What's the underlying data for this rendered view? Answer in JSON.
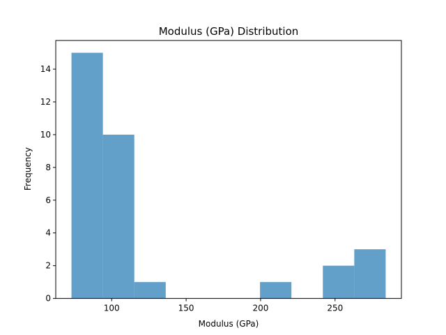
{
  "chart_data": {
    "type": "bar",
    "title": "Modulus (GPa) Distribution",
    "xlabel": "Modulus (GPa)",
    "ylabel": "Frequency",
    "bins": [
      {
        "x0": 73,
        "x1": 94.1,
        "count": 15
      },
      {
        "x0": 94.1,
        "x1": 115.2,
        "count": 10
      },
      {
        "x0": 115.2,
        "x1": 136.3,
        "count": 1
      },
      {
        "x0": 136.3,
        "x1": 157.4,
        "count": 0
      },
      {
        "x0": 157.4,
        "x1": 178.5,
        "count": 0
      },
      {
        "x0": 178.5,
        "x1": 199.6,
        "count": 0
      },
      {
        "x0": 199.6,
        "x1": 220.7,
        "count": 1
      },
      {
        "x0": 220.7,
        "x1": 241.8,
        "count": 0
      },
      {
        "x0": 241.8,
        "x1": 262.9,
        "count": 2
      },
      {
        "x0": 262.9,
        "x1": 284,
        "count": 3
      }
    ],
    "xlim": [
      62.45,
      294.55
    ],
    "ylim": [
      0,
      15.75
    ],
    "xticks": [
      100,
      150,
      200,
      250
    ],
    "yticks": [
      0,
      2,
      4,
      6,
      8,
      10,
      12,
      14
    ],
    "grid": false,
    "colors": {
      "bar": "#1f77b4"
    }
  }
}
